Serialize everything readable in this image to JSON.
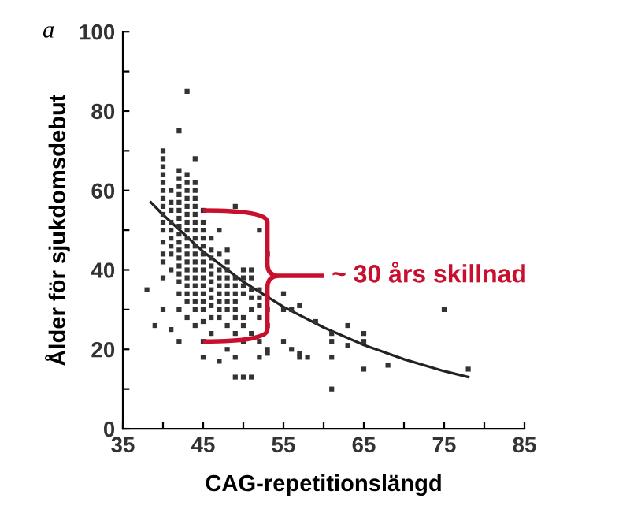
{
  "chart_data": {
    "type": "scatter",
    "xlabel": "CAG-repetitionslängd",
    "ylabel": "Ålder för sjukdomsdebut",
    "xlim": [
      35,
      85
    ],
    "ylim": [
      0,
      100
    ],
    "xticks": [
      35,
      {
        "value": 40,
        "label": null
      },
      45,
      {
        "value": 50,
        "label": null
      },
      55,
      {
        "value": 60,
        "label": null
      },
      65,
      {
        "value": 70,
        "label": null
      },
      75,
      {
        "value": 80,
        "label": null
      },
      85
    ],
    "yticks": [
      0,
      {
        "value": 10,
        "label": null
      },
      20,
      {
        "value": 30,
        "label": null
      },
      40,
      {
        "value": 50,
        "label": null
      },
      60,
      {
        "value": 70,
        "label": null
      },
      80,
      {
        "value": 90,
        "label": null
      },
      100
    ],
    "grid": false,
    "series": [
      {
        "color": "#333333",
        "marker": "square",
        "x": [
          38,
          39,
          40,
          40,
          40,
          40,
          40,
          40,
          40,
          40,
          40,
          40,
          40,
          40,
          40,
          40,
          40,
          40,
          41,
          41,
          41,
          41,
          41,
          41,
          41,
          41,
          41,
          41,
          42,
          42,
          42,
          42,
          42,
          42,
          42,
          42,
          42,
          42,
          42,
          42,
          42,
          42,
          42,
          42,
          42,
          42,
          42,
          43,
          43,
          43,
          43,
          43,
          43,
          43,
          43,
          43,
          43,
          43,
          43,
          43,
          43,
          43,
          43,
          43,
          43,
          43,
          44,
          44,
          44,
          44,
          44,
          44,
          44,
          44,
          44,
          44,
          44,
          44,
          44,
          44,
          44,
          44,
          44,
          44,
          44,
          45,
          45,
          45,
          45,
          45,
          45,
          45,
          45,
          45,
          45,
          45,
          45,
          45,
          45,
          45,
          45,
          46,
          46,
          46,
          46,
          46,
          46,
          46,
          46,
          46,
          46,
          46,
          47,
          47,
          47,
          47,
          47,
          47,
          47,
          47,
          47,
          47,
          48,
          48,
          48,
          48,
          48,
          48,
          48,
          48,
          48,
          48,
          49,
          49,
          49,
          49,
          49,
          49,
          49,
          49,
          49,
          49,
          50,
          50,
          50,
          50,
          50,
          50,
          50,
          50,
          51,
          51,
          51,
          51,
          51,
          51,
          51,
          52,
          52,
          52,
          52,
          52,
          52,
          52,
          53,
          53,
          53,
          53,
          53,
          53,
          55,
          55,
          55,
          56,
          56,
          57,
          57,
          57,
          58,
          59,
          61,
          61,
          61,
          61,
          63,
          63,
          65,
          65,
          65,
          68,
          75,
          78
        ],
        "values": [
          35,
          26,
          70,
          68,
          66,
          64,
          62,
          60,
          58,
          56,
          54,
          52,
          50,
          47,
          44,
          42,
          38,
          30,
          60,
          57,
          55,
          52,
          50,
          48,
          46,
          44,
          40,
          25,
          75,
          65,
          63,
          61,
          59,
          57,
          55,
          53,
          51,
          49,
          47,
          45,
          43,
          41,
          39,
          37,
          34,
          30,
          22,
          85,
          64,
          62,
          60,
          58,
          56,
          54,
          52,
          50,
          48,
          46,
          44,
          42,
          40,
          38,
          36,
          34,
          32,
          28,
          68,
          62,
          60,
          58,
          56,
          54,
          52,
          50,
          48,
          46,
          44,
          42,
          40,
          38,
          36,
          34,
          32,
          30,
          26,
          55,
          52,
          50,
          48,
          46,
          44,
          42,
          40,
          38,
          36,
          34,
          32,
          30,
          27,
          22,
          18,
          48,
          45,
          43,
          41,
          39,
          37,
          35,
          33,
          31,
          28,
          24,
          50,
          44,
          40,
          38,
          36,
          34,
          32,
          30,
          28,
          17,
          45,
          42,
          40,
          38,
          36,
          34,
          32,
          30,
          26,
          20,
          56,
          38,
          36,
          34,
          32,
          30,
          28,
          24,
          18,
          13,
          40,
          38,
          36,
          34,
          28,
          26,
          22,
          13,
          40,
          38,
          35,
          33,
          30,
          24,
          13,
          50,
          35,
          33,
          31,
          28,
          22,
          18,
          44,
          33,
          30,
          26,
          20,
          19,
          34,
          30,
          22,
          30,
          20,
          31,
          19,
          18,
          18,
          27,
          10,
          24,
          22,
          18,
          26,
          21,
          24,
          22,
          15,
          16,
          30,
          15
        ]
      },
      {
        "type": "line",
        "color": "#222222",
        "line_style": "solid",
        "marker": "none",
        "x": [
          38.5,
          40,
          45,
          50,
          55,
          60,
          65,
          70,
          75,
          78
        ],
        "values": [
          57,
          53.9,
          44.6,
          37.0,
          30.7,
          25.5,
          21.1,
          17.5,
          14.5,
          13
        ]
      }
    ],
    "annotations": [
      "a",
      {
        "text": "~ 30 års skillnad",
        "x": 45,
        "y": 55
      }
    ]
  }
}
